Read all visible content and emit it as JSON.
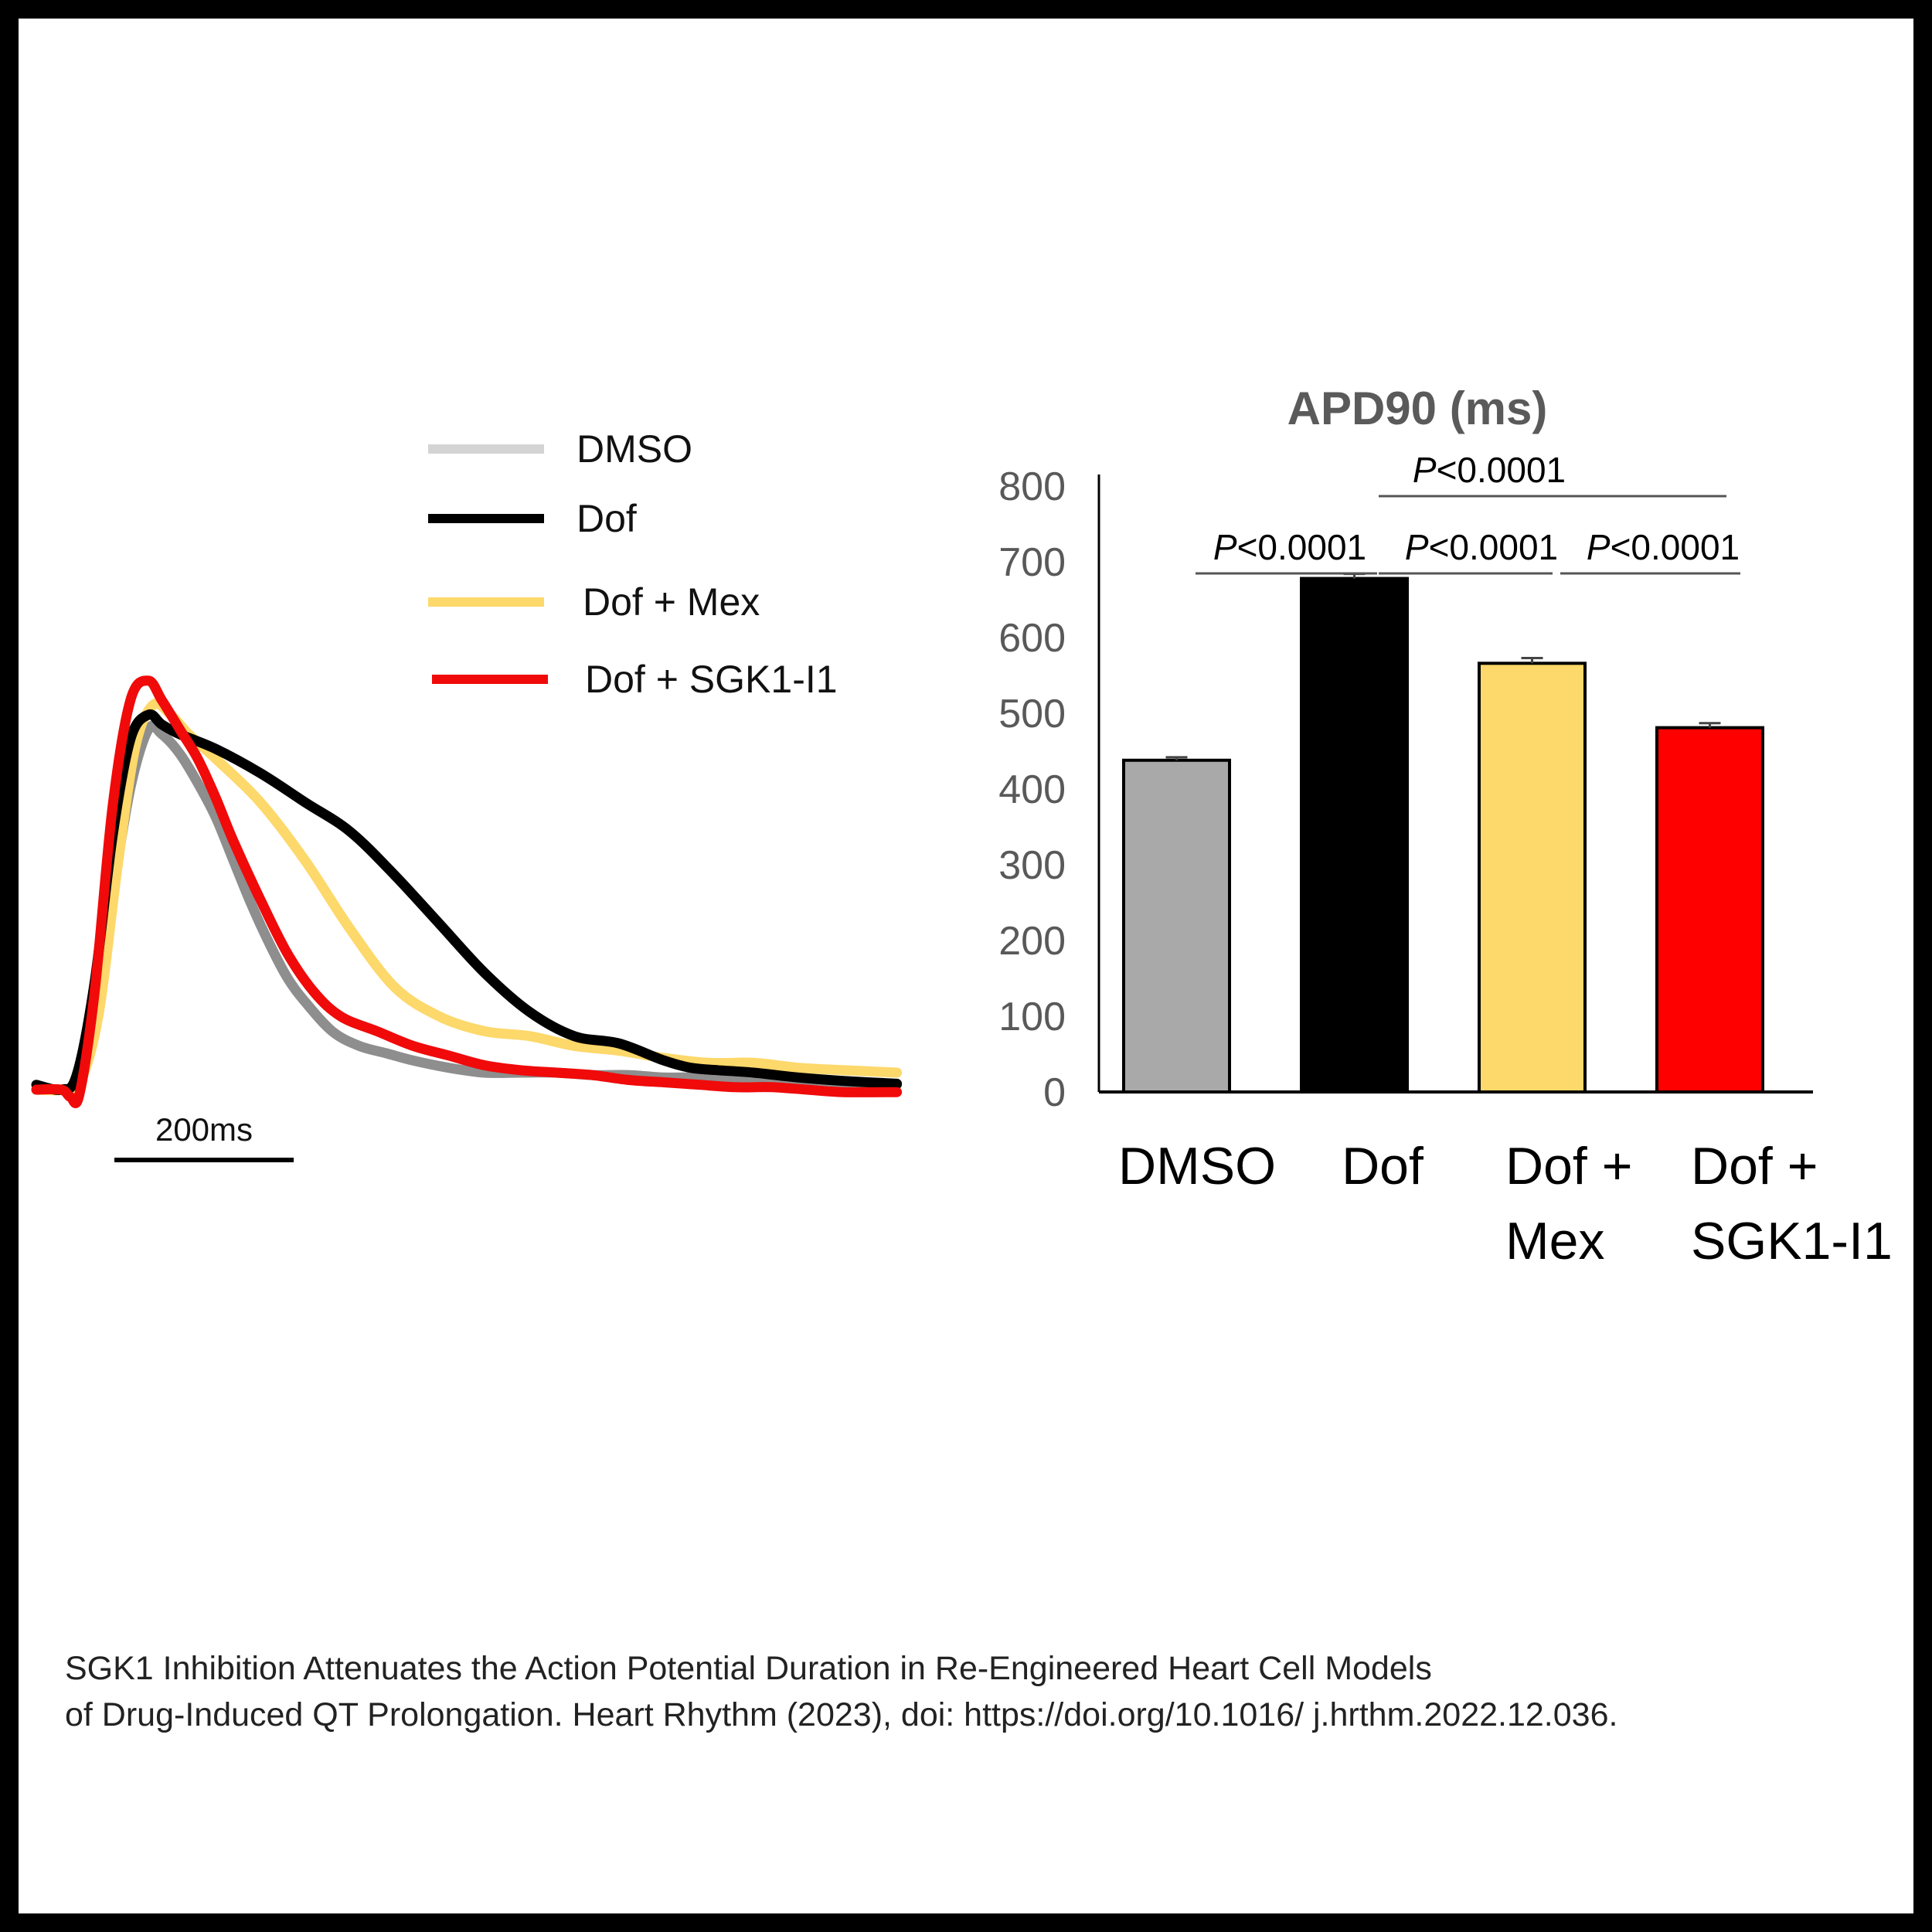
{
  "figure": {
    "legend": [
      {
        "label": "DMSO",
        "color": "#d4d4d4"
      },
      {
        "label": "Dof",
        "color": "#000000"
      },
      {
        "label": "Dof + Mex",
        "color": "#fdd86a"
      },
      {
        "label": "Dof + SGK1-I1",
        "color": "#f00a0a"
      }
    ],
    "scalebar_label": "200ms",
    "caption_line1": "SGK1 Inhibition Attenuates the Action Potential Duration in Re-Engineered Heart Cell Models",
    "caption_line2": "of Drug-Induced QT Prolongation. Heart Rhythm (2023), doi: https://doi.org/10.1016/ j.hrthm.2022.12.036."
  },
  "chart_data": [
    {
      "type": "line",
      "title": "",
      "xlabel": "",
      "ylabel": "",
      "x_unit": "ms",
      "x_range": [
        0,
        960
      ],
      "y_range": [
        0,
        1
      ],
      "grid": false,
      "legend_position": "top-right",
      "scalebar": {
        "label": "200ms",
        "length": 200
      },
      "series": [
        {
          "name": "DMSO",
          "color": "#8e8e8e",
          "x": [
            0,
            28,
            45,
            65,
            85,
            105,
            125,
            140,
            160,
            180,
            200,
            220,
            240,
            260,
            280,
            300,
            330,
            360,
            390,
            420,
            460,
            500,
            540,
            580,
            620,
            660,
            700,
            740,
            780,
            820,
            860,
            900,
            960
          ],
          "y": [
            0.0,
            0.0,
            0.01,
            0.15,
            0.4,
            0.62,
            0.74,
            0.73,
            0.69,
            0.63,
            0.56,
            0.47,
            0.38,
            0.3,
            0.23,
            0.18,
            0.12,
            0.09,
            0.075,
            0.06,
            0.045,
            0.035,
            0.035,
            0.035,
            0.03,
            0.03,
            0.025,
            0.025,
            0.02,
            0.02,
            0.02,
            0.015,
            0.01
          ]
        },
        {
          "name": "Dof",
          "color": "#000000",
          "x": [
            0,
            28,
            45,
            65,
            85,
            105,
            125,
            140,
            160,
            200,
            250,
            300,
            350,
            400,
            450,
            500,
            550,
            600,
            650,
            700,
            730,
            760,
            800,
            850,
            900,
            960
          ],
          "y": [
            0.01,
            0.0,
            0.03,
            0.22,
            0.52,
            0.72,
            0.77,
            0.75,
            0.73,
            0.7,
            0.65,
            0.59,
            0.53,
            0.44,
            0.34,
            0.24,
            0.16,
            0.11,
            0.095,
            0.06,
            0.045,
            0.04,
            0.035,
            0.025,
            0.018,
            0.012
          ]
        },
        {
          "name": "Dof + Mex",
          "color": "#fdd86a",
          "x": [
            0,
            30,
            50,
            70,
            90,
            110,
            130,
            150,
            170,
            200,
            250,
            300,
            350,
            400,
            450,
            500,
            550,
            600,
            650,
            700,
            750,
            800,
            850,
            900,
            960
          ],
          "y": [
            0.0,
            0.0,
            0.02,
            0.16,
            0.45,
            0.7,
            0.79,
            0.77,
            0.73,
            0.68,
            0.59,
            0.47,
            0.33,
            0.21,
            0.15,
            0.12,
            0.11,
            0.09,
            0.08,
            0.065,
            0.055,
            0.055,
            0.045,
            0.04,
            0.035
          ]
        },
        {
          "name": "Dof + SGK1-I1",
          "color": "#f00a0a",
          "x": [
            0,
            28,
            38,
            48,
            65,
            85,
            105,
            125,
            140,
            160,
            180,
            200,
            220,
            250,
            280,
            310,
            340,
            380,
            420,
            460,
            500,
            540,
            580,
            620,
            660,
            700,
            740,
            780,
            820,
            860,
            900,
            960
          ],
          "y": [
            0.0,
            0.0,
            -0.015,
            -0.01,
            0.2,
            0.58,
            0.8,
            0.84,
            0.8,
            0.74,
            0.68,
            0.6,
            0.51,
            0.39,
            0.28,
            0.2,
            0.15,
            0.12,
            0.09,
            0.07,
            0.05,
            0.04,
            0.035,
            0.03,
            0.02,
            0.015,
            0.01,
            0.005,
            0.005,
            0.0,
            -0.005,
            -0.005
          ]
        }
      ]
    },
    {
      "type": "bar",
      "title": "APD90 (ms)",
      "xlabel": "",
      "ylabel": "",
      "categories": [
        "DMSO",
        "Dof",
        "Dof +\nMex",
        "Dof +\nSGK1-I1"
      ],
      "values": [
        438,
        678,
        566,
        481
      ],
      "errors": [
        4,
        6,
        7,
        6
      ],
      "colors": [
        "#a9a9a9",
        "#000000",
        "#fdd86a",
        "#ff0000"
      ],
      "ylim": [
        0,
        800
      ],
      "yticks": [
        0,
        100,
        200,
        300,
        400,
        500,
        600,
        700,
        800
      ],
      "grid": false,
      "significance": [
        {
          "from": 0,
          "to": 1,
          "label": "P<0.0001",
          "level": 1
        },
        {
          "from": 1,
          "to": 2,
          "label": "P<0.0001",
          "level": 1
        },
        {
          "from": 2,
          "to": 3,
          "label": "P<0.0001",
          "level": 1
        },
        {
          "from": 1,
          "to": 3,
          "label": "P<0.0001",
          "level": 2
        }
      ]
    }
  ]
}
